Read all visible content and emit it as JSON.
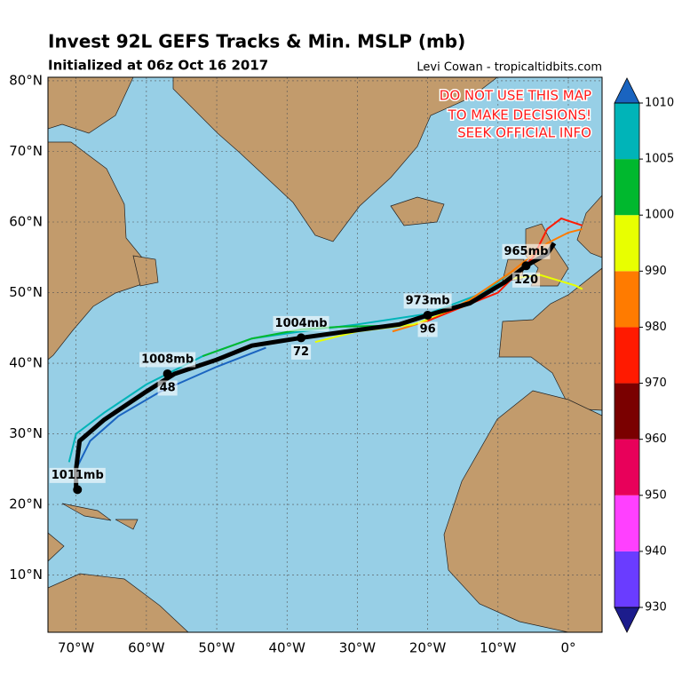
{
  "header": {
    "title": "Invest 92L GEFS Tracks & Min. MSLP (mb)",
    "subtitle": "Initialized at 06z Oct 16 2017",
    "credit": "Levi Cowan - tropicaltidbits.com"
  },
  "warning": [
    "DO NOT USE THIS MAP",
    "TO MAKE DECISIONS!",
    "SEEK OFFICIAL INFO"
  ],
  "map": {
    "xlim": [
      -74,
      4.8
    ],
    "ylim": [
      1.9,
      80.5
    ],
    "xticks": [
      {
        "value": -70,
        "label": "70°W"
      },
      {
        "value": -60,
        "label": "60°W"
      },
      {
        "value": -50,
        "label": "50°W"
      },
      {
        "value": -40,
        "label": "40°W"
      },
      {
        "value": -30,
        "label": "30°W"
      },
      {
        "value": -20,
        "label": "20°W"
      },
      {
        "value": -10,
        "label": "10°W"
      },
      {
        "value": 0,
        "label": "0°"
      }
    ],
    "yticks": [
      {
        "value": 80,
        "label": "80°N"
      },
      {
        "value": 70,
        "label": "70°N"
      },
      {
        "value": 60,
        "label": "60°N"
      },
      {
        "value": 50,
        "label": "50°N"
      },
      {
        "value": 40,
        "label": "40°N"
      },
      {
        "value": 30,
        "label": "30°N"
      },
      {
        "value": 20,
        "label": "20°N"
      },
      {
        "value": 10,
        "label": "10°N"
      }
    ],
    "mean_track": {
      "color": "#000000",
      "lon": [
        -70,
        -70,
        -69.5,
        -66,
        -60,
        -56,
        -50,
        -45,
        -38,
        -30,
        -24,
        -20,
        -14,
        -9,
        -6,
        -3,
        -2
      ],
      "lat": [
        22.2,
        25,
        29,
        32,
        36,
        38.5,
        40.5,
        42.5,
        43.6,
        44.7,
        45.5,
        46.8,
        48.5,
        51.5,
        53.8,
        55.5,
        57
      ]
    },
    "ensemble": [
      {
        "color": "#00b4b8",
        "lon": [
          -71,
          -70,
          -66,
          -60,
          -52,
          -45,
          -38,
          -30,
          -20,
          -12,
          -8
        ],
        "lat": [
          26,
          30,
          33,
          37,
          41,
          43.5,
          44.5,
          45.5,
          47,
          50,
          53
        ]
      },
      {
        "color": "#1a64c0",
        "lon": [
          -70,
          -68,
          -64,
          -58,
          -50,
          -43
        ],
        "lat": [
          25,
          29,
          32.5,
          36,
          39.5,
          42.2
        ]
      },
      {
        "color": "#ff7b00",
        "lon": [
          -25,
          -20,
          -14,
          -8,
          -3,
          0,
          2
        ],
        "lat": [
          44.5,
          46,
          49,
          53,
          57,
          58.5,
          59
        ]
      },
      {
        "color": "#e8ff00",
        "lon": [
          -36,
          -30,
          -22,
          -15,
          -8,
          -4,
          1,
          2
        ],
        "lat": [
          43,
          44.5,
          45.5,
          48,
          52,
          52.5,
          51,
          50.5
        ]
      },
      {
        "color": "#ff1a00",
        "lon": [
          -20,
          -10,
          -5,
          -3,
          -1,
          2
        ],
        "lat": [
          46,
          50,
          55,
          59,
          60.5,
          59.5
        ]
      },
      {
        "color": "#00b82e",
        "lon": [
          -52,
          -45,
          -38,
          -32,
          -26
        ],
        "lat": [
          41,
          43.5,
          44.8,
          45.2,
          45.3
        ]
      }
    ],
    "annotations": [
      {
        "pressure": "1011mb",
        "lon": -69.8,
        "lat": 22.1
      },
      {
        "pressure": "1008mb",
        "hour": "48",
        "lon": -57,
        "lat": 38.5
      },
      {
        "pressure": "1004mb",
        "hour": "72",
        "lon": -38,
        "lat": 43.6
      },
      {
        "pressure": "973mb",
        "hour": "96",
        "lon": -20,
        "lat": 46.8
      },
      {
        "pressure": "965mb",
        "hour": "120",
        "lon": -6,
        "lat": 53.8
      }
    ],
    "colorbar": {
      "levels": [
        930,
        940,
        950,
        960,
        970,
        980,
        990,
        1000,
        1005,
        1010
      ],
      "colors": [
        "#6a3cff",
        "#ff40ff",
        "#e8005a",
        "#7a0000",
        "#ff1a00",
        "#ff7b00",
        "#e8ff00",
        "#00b82e",
        "#00b4b8"
      ],
      "under": "#1c1c8c",
      "over": "#1a64c0"
    }
  }
}
